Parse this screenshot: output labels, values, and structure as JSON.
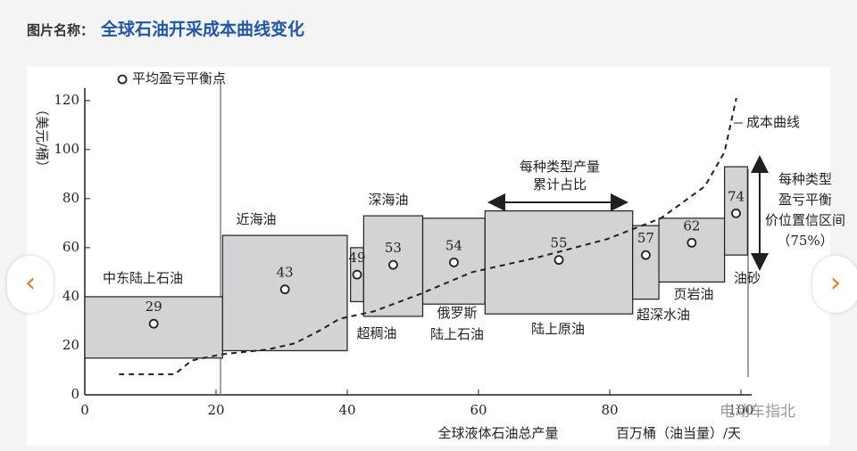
{
  "header": {
    "label": "图片名称：",
    "title": "全球石油开采成本曲线变化"
  },
  "chart_data": {
    "type": "cost-curve",
    "y_label": "（美元/桶）",
    "x_label": "全球液体石油总产量",
    "x_unit": "百万桶（油当量）/天",
    "legend": "平均盈亏平衡点",
    "xlim": [
      0,
      100
    ],
    "xticks": [
      0,
      20,
      40,
      60,
      80,
      100
    ],
    "ylim": [
      0,
      125
    ],
    "yticks": [
      0,
      20,
      40,
      60,
      80,
      100,
      120
    ],
    "box_color": "#d1d3d4",
    "boxes": [
      {
        "name": [
          "中东陆上石油"
        ],
        "x": [
          0,
          21
        ],
        "low": 15,
        "high": 40,
        "value": 29
      },
      {
        "name": [
          "近海油"
        ],
        "x": [
          21,
          40
        ],
        "low": 18,
        "high": 65,
        "value": 43
      },
      {
        "name": [
          "超稠油"
        ],
        "x": [
          40.5,
          42.5
        ],
        "low": 38,
        "high": 60,
        "value": 49
      },
      {
        "name": [
          "深海油"
        ],
        "x": [
          42.5,
          51.5
        ],
        "low": 32,
        "high": 73,
        "value": 53
      },
      {
        "name": [
          "俄罗斯",
          "陆上石油"
        ],
        "x": [
          51.5,
          61
        ],
        "low": 37,
        "high": 72,
        "value": 54
      },
      {
        "name": [
          "陆上原油"
        ],
        "x": [
          61,
          83.5
        ],
        "low": 33,
        "high": 75,
        "value": 55
      },
      {
        "name": [
          "超深水油"
        ],
        "x": [
          83.5,
          87.5
        ],
        "low": 39,
        "high": 69,
        "value": 57
      },
      {
        "name": [
          "页岩油"
        ],
        "x": [
          87.5,
          97.5
        ],
        "low": 46,
        "high": 72,
        "value": 62
      },
      {
        "name": [
          "油砂"
        ],
        "x": [
          97.5,
          101
        ],
        "low": 57,
        "high": 93,
        "value": 74
      }
    ],
    "curve": {
      "name": "成本曲线",
      "x": [
        5.2,
        13.7,
        16.3,
        20.8,
        27.9,
        32,
        36,
        38.8,
        44,
        51,
        59,
        69,
        79.6,
        87.8,
        94.5,
        97.5,
        99.3
      ],
      "values": [
        8.4,
        8.4,
        14,
        16.5,
        18.5,
        21,
        26.5,
        31,
        34,
        41,
        50,
        56,
        63.5,
        72,
        85,
        99,
        121
      ]
    },
    "share_note": [
      "每种类型产量",
      "累计占比"
    ],
    "range_note": [
      "每种类型",
      "盈亏平衡",
      "价位置信区间",
      "（75%）"
    ]
  },
  "watermark": "电动车指北"
}
